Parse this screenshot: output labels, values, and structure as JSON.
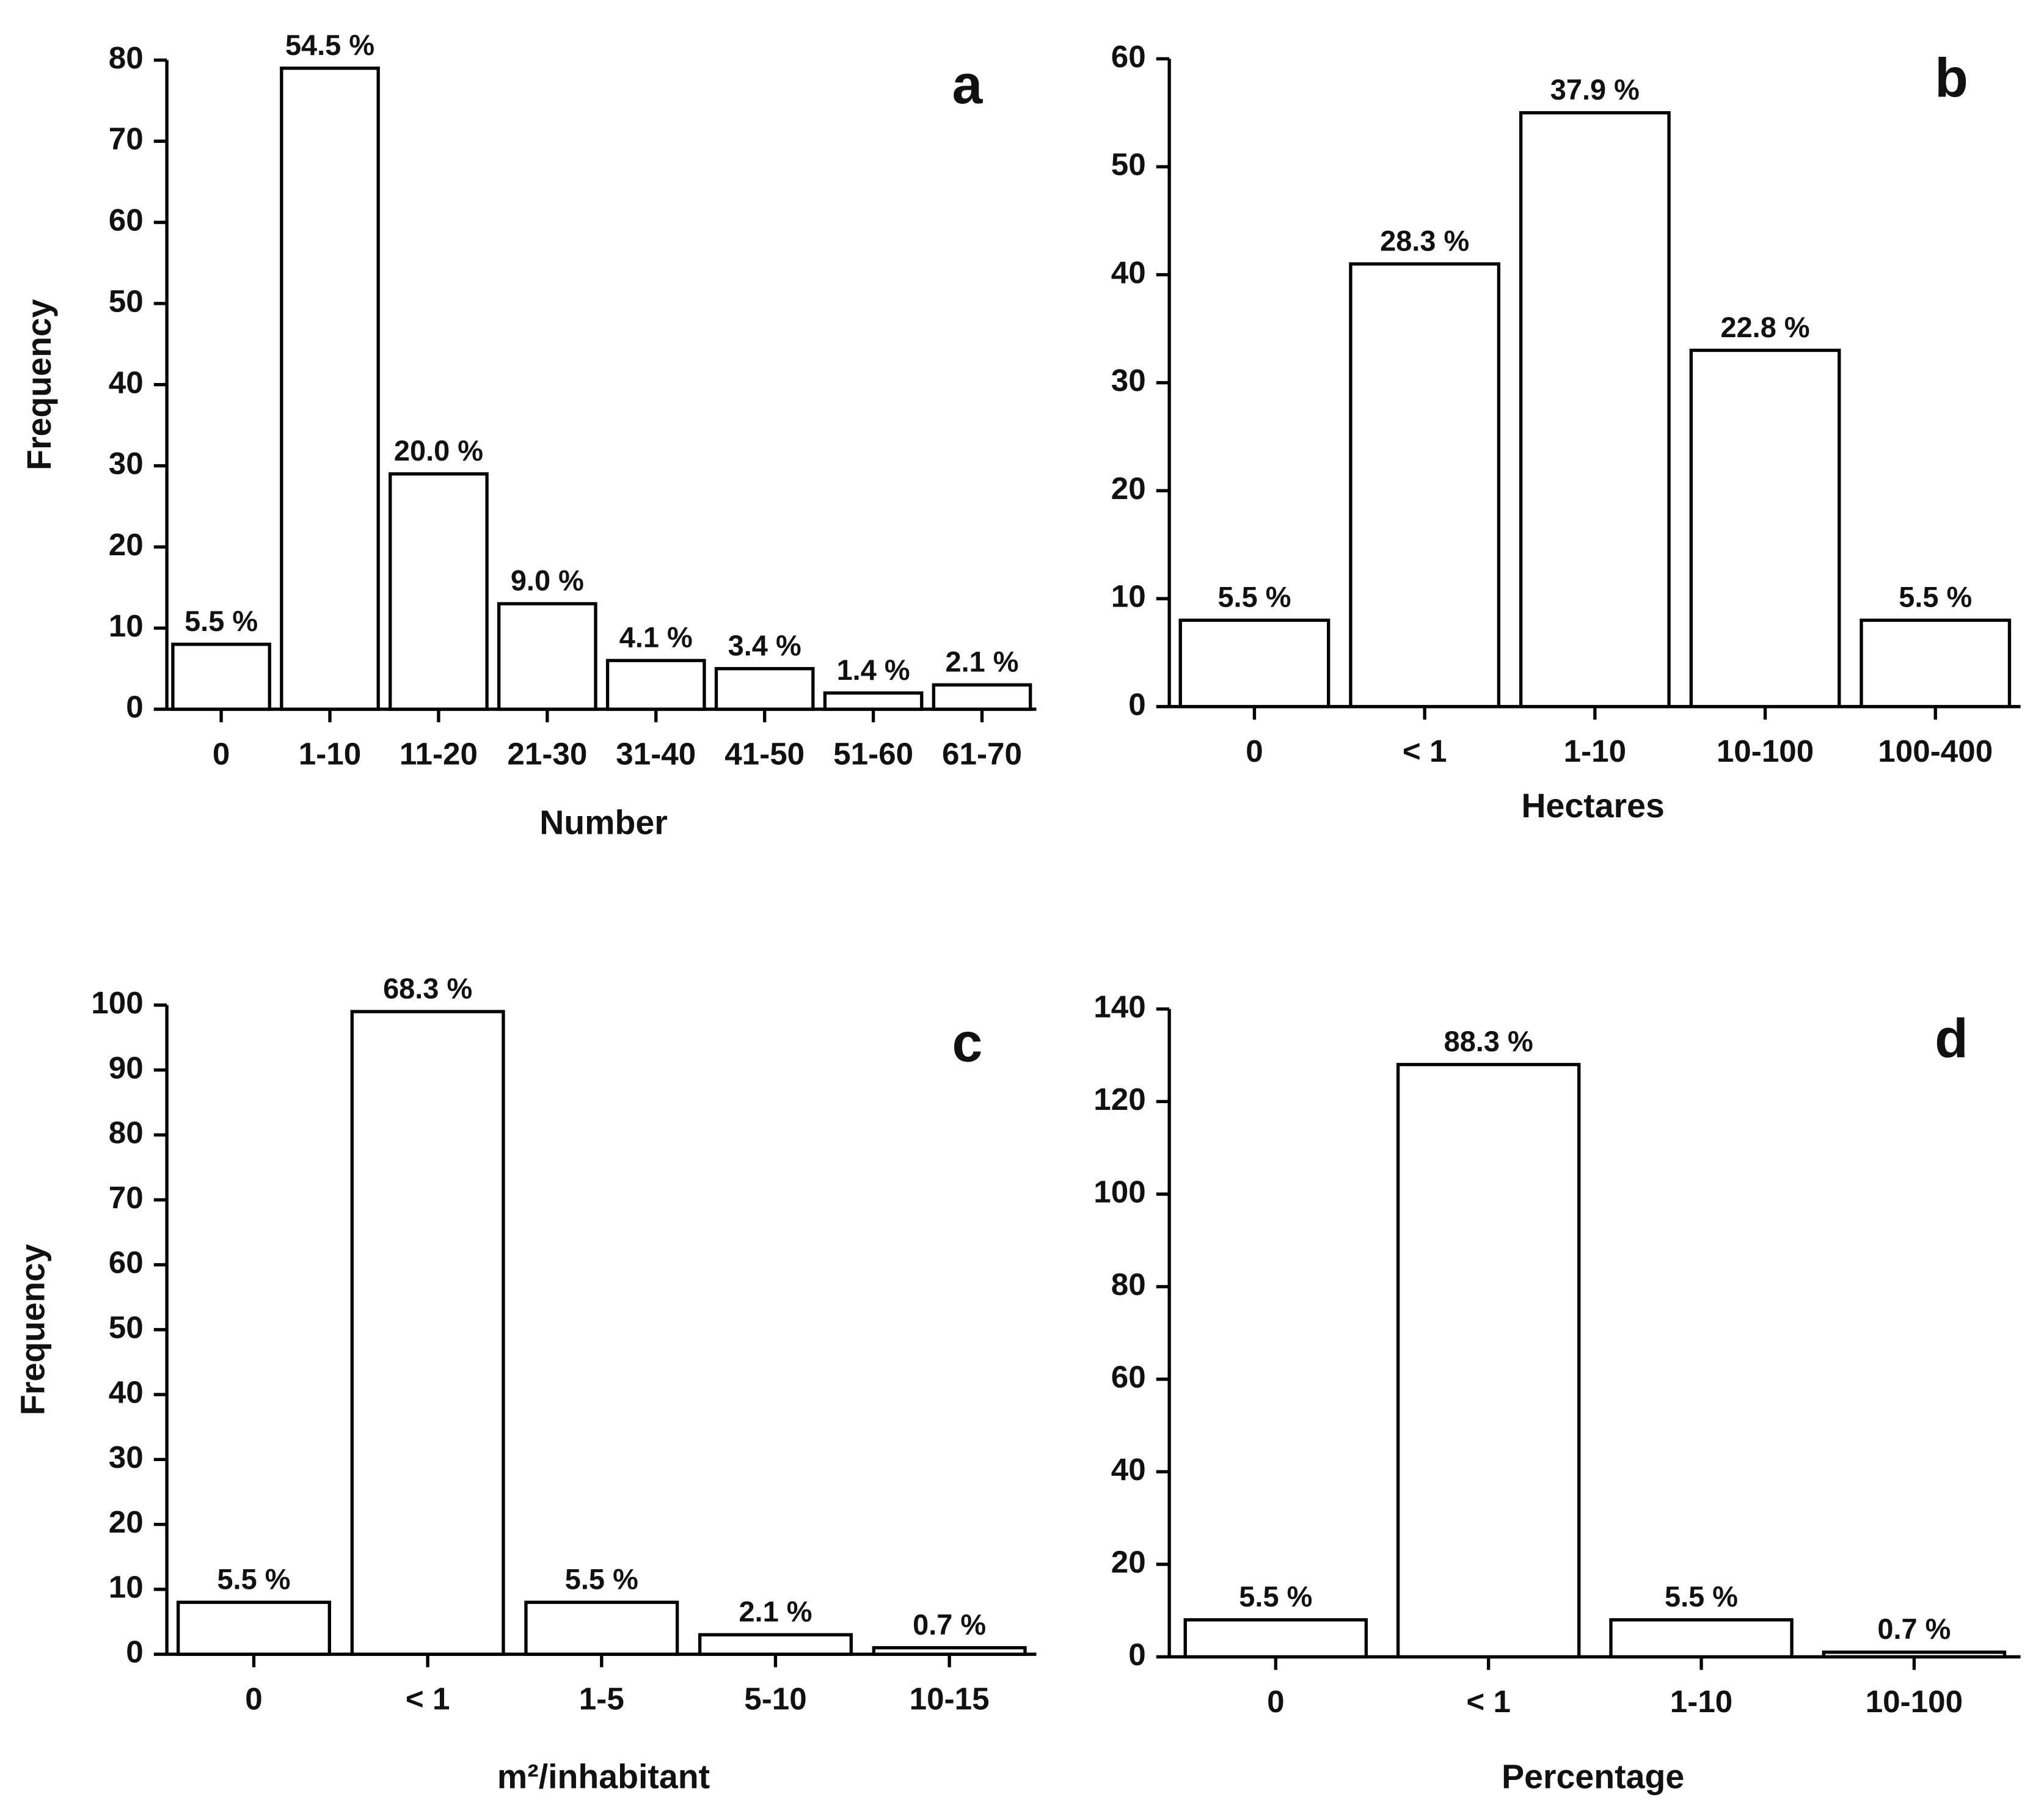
{
  "chart_data": [
    {
      "type": "bar",
      "panel": "a",
      "ylabel": "Frequency",
      "xlabel": "Number",
      "categories": [
        "0",
        "1-10",
        "11-20",
        "21-30",
        "31-40",
        "41-50",
        "51-60",
        "61-70"
      ],
      "values": [
        8,
        79,
        29,
        13,
        6,
        5,
        2,
        3
      ],
      "bar_labels": [
        "5.5 %",
        "54.5 %",
        "20.0 %",
        "9.0 %",
        "4.1 %",
        "3.4 %",
        "1.4 %",
        "2.1 %"
      ],
      "color": "#ffffff",
      "ylim": [
        0,
        80
      ],
      "yticks": [
        0,
        10,
        20,
        30,
        40,
        50,
        60,
        70,
        80
      ]
    },
    {
      "type": "bar",
      "panel": "b",
      "xlabel": "Hectares",
      "categories": [
        "0",
        "< 1",
        "1-10",
        "10-100",
        "100-400"
      ],
      "values": [
        8,
        41,
        55,
        33,
        8
      ],
      "bar_labels": [
        "5.5 %",
        "28.3 %",
        "37.9 %",
        "22.8 %",
        "5.5 %"
      ],
      "color": "#ffffff",
      "ylim": [
        0,
        60
      ],
      "yticks": [
        0,
        10,
        20,
        30,
        40,
        50,
        60
      ]
    },
    {
      "type": "bar",
      "panel": "c",
      "ylabel": "Frequency",
      "xlabel": "m²/inhabitant",
      "categories": [
        "0",
        "< 1",
        "1-5",
        "5-10",
        "10-15"
      ],
      "values": [
        8,
        99,
        8,
        3,
        1
      ],
      "bar_labels": [
        "5.5 %",
        "68.3 %",
        "5.5 %",
        "2.1 %",
        "0.7 %"
      ],
      "color": "#ffffff",
      "ylim": [
        0,
        100
      ],
      "yticks": [
        0,
        10,
        20,
        30,
        40,
        50,
        60,
        70,
        80,
        90,
        100
      ]
    },
    {
      "type": "bar",
      "panel": "d",
      "xlabel": "Percentage",
      "categories": [
        "0",
        "< 1",
        "1-10",
        "10-100"
      ],
      "values": [
        8,
        128,
        8,
        1
      ],
      "bar_labels": [
        "5.5 %",
        "88.3 %",
        "5.5 %",
        "0.7 %"
      ],
      "color": "#ffffff",
      "ylim": [
        0,
        140
      ],
      "yticks": [
        0,
        20,
        40,
        60,
        80,
        100,
        120,
        140
      ]
    }
  ]
}
